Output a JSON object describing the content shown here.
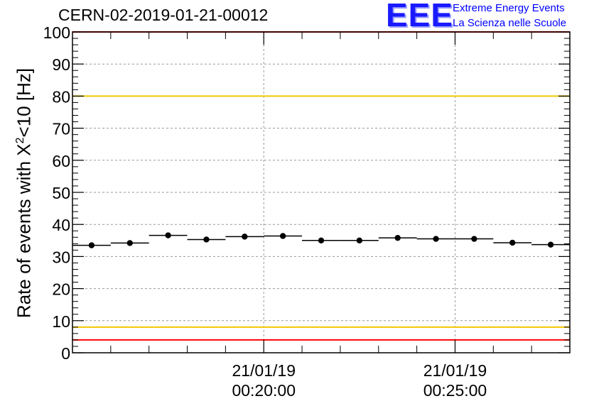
{
  "title": "CERN-02-2019-01-21-00012",
  "logo": {
    "mark": "EEE",
    "line1": "Extreme Energy Events",
    "line2": "La Scienza nelle Scuole",
    "color": "#0000ff"
  },
  "chart_data": {
    "type": "scatter",
    "ylabel": {
      "pre": "Rate of events with X",
      "sup": "2",
      "post": "<10 [Hz]"
    },
    "ylim": [
      0,
      100
    ],
    "yticks": [
      0,
      10,
      20,
      30,
      40,
      50,
      60,
      70,
      80,
      90,
      100
    ],
    "x_range": [
      "2019-01-21 00:15:00",
      "2019-01-21 00:28:00"
    ],
    "xticks": [
      {
        "date": "21/01/19",
        "time": "00:20:00"
      },
      {
        "date": "21/01/19",
        "time": "00:25:00"
      }
    ],
    "grid": true,
    "series": [
      {
        "marker": "filled circle with horizontal bin bars",
        "color": "#000000",
        "bin_width_seconds": 60,
        "x": [
          "00:15:30",
          "00:16:30",
          "00:17:30",
          "00:18:30",
          "00:19:30",
          "00:20:30",
          "00:21:30",
          "00:22:30",
          "00:23:30",
          "00:24:30",
          "00:25:30",
          "00:26:30",
          "00:27:30"
        ],
        "values": [
          33.5,
          34.2,
          36.6,
          35.3,
          36.2,
          36.4,
          35.0,
          35.0,
          35.8,
          35.5,
          35.5,
          34.3,
          33.7
        ]
      }
    ],
    "reference_lines": [
      {
        "value": 100,
        "color": "#ff0000"
      },
      {
        "value": 80,
        "color": "#f0c800"
      },
      {
        "value": 8,
        "color": "#f0c800"
      },
      {
        "value": 4,
        "color": "#ff0000"
      }
    ]
  }
}
